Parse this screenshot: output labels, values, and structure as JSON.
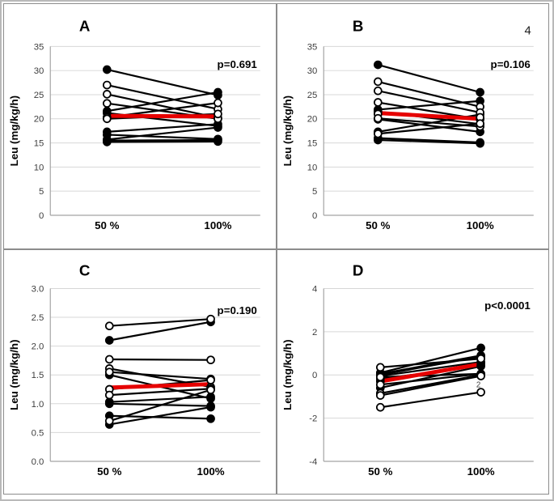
{
  "figure": {
    "page_number": "4",
    "y_axis_label": "Leu (mg/kg/h)",
    "x_categories": [
      "50 %",
      "100%"
    ],
    "colors": {
      "mean_line": "#e60000",
      "subject_line": "#000000",
      "grid_line": "#d7d7d7",
      "axis_line": "#a3a3a3",
      "panel_border": "#8c8c8c"
    }
  },
  "chart_data": [
    {
      "type": "line",
      "panel": "A",
      "title": "A",
      "p_label": "p=0.691",
      "ylabel": "Leu (mg/kg/h)",
      "categories": [
        "50 %",
        "100%"
      ],
      "ylim": [
        0,
        35
      ],
      "yticks": [
        0,
        5,
        10,
        15,
        20,
        25,
        30,
        35
      ],
      "ytick_labels": [
        "0",
        "5",
        "10",
        "15",
        "20",
        "25",
        "30",
        "35"
      ],
      "grid": true,
      "series": [
        {
          "name": "subject-1",
          "marker": "filled",
          "values": [
            30.2,
            24.9
          ]
        },
        {
          "name": "subject-2",
          "marker": "open",
          "values": [
            27.0,
            22.0
          ]
        },
        {
          "name": "subject-3",
          "marker": "open",
          "values": [
            25.1,
            20.2
          ]
        },
        {
          "name": "subject-4",
          "marker": "open",
          "values": [
            23.2,
            20.0
          ]
        },
        {
          "name": "subject-5",
          "marker": "filled",
          "values": [
            21.6,
            25.5
          ]
        },
        {
          "name": "subject-6",
          "marker": "filled",
          "values": [
            21.2,
            18.5
          ]
        },
        {
          "name": "subject-7",
          "marker": "open",
          "values": [
            20.3,
            23.3
          ]
        },
        {
          "name": "subject-8",
          "marker": "open",
          "values": [
            20.0,
            21.0
          ]
        },
        {
          "name": "subject-9",
          "marker": "filled",
          "values": [
            17.3,
            18.9
          ]
        },
        {
          "name": "subject-10",
          "marker": "filled",
          "values": [
            16.7,
            15.8
          ]
        },
        {
          "name": "subject-11",
          "marker": "filled",
          "values": [
            15.7,
            18.2
          ]
        },
        {
          "name": "subject-12",
          "marker": "filled",
          "values": [
            15.5,
            15.6
          ]
        },
        {
          "name": "subject-13",
          "marker": "filled",
          "values": [
            15.2,
            15.3
          ]
        }
      ],
      "mean": [
        20.6,
        20.5
      ]
    },
    {
      "type": "line",
      "panel": "B",
      "title": "B",
      "corner_note": "4",
      "p_label": "p=0.106",
      "ylabel": "Leu (mg/kg/h)",
      "categories": [
        "50 %",
        "100%"
      ],
      "ylim": [
        0,
        35
      ],
      "yticks": [
        0,
        5,
        10,
        15,
        20,
        25,
        30,
        35
      ],
      "ytick_labels": [
        "0",
        "5",
        "10",
        "15",
        "20",
        "25",
        "30",
        "35"
      ],
      "grid": true,
      "series": [
        {
          "name": "subject-1",
          "marker": "filled",
          "values": [
            31.2,
            25.5
          ]
        },
        {
          "name": "subject-2",
          "marker": "open",
          "values": [
            27.7,
            22.5
          ]
        },
        {
          "name": "subject-3",
          "marker": "open",
          "values": [
            25.8,
            21.3
          ]
        },
        {
          "name": "subject-4",
          "marker": "open",
          "values": [
            23.4,
            19.9
          ]
        },
        {
          "name": "subject-5",
          "marker": "filled",
          "values": [
            21.9,
            23.7
          ]
        },
        {
          "name": "subject-6",
          "marker": "filled",
          "values": [
            21.5,
            18.9
          ]
        },
        {
          "name": "subject-7",
          "marker": "open",
          "values": [
            21.0,
            20.3
          ]
        },
        {
          "name": "subject-8",
          "marker": "open",
          "values": [
            20.1,
            18.4
          ]
        },
        {
          "name": "subject-9",
          "marker": "filled",
          "values": [
            19.9,
            17.3
          ]
        },
        {
          "name": "subject-10",
          "marker": "filled",
          "values": [
            17.3,
            20.9
          ]
        },
        {
          "name": "subject-11",
          "marker": "open",
          "values": [
            16.9,
            19.0
          ]
        },
        {
          "name": "subject-12",
          "marker": "filled",
          "values": [
            16.0,
            15.1
          ]
        },
        {
          "name": "subject-13",
          "marker": "filled",
          "values": [
            15.6,
            14.9
          ]
        }
      ],
      "mean": [
        21.2,
        20.0
      ]
    },
    {
      "type": "line",
      "panel": "C",
      "title": "C",
      "p_label": "p=0.190",
      "ylabel": "Leu (mg/kg/h)",
      "categories": [
        "50 %",
        "100%"
      ],
      "ylim": [
        0,
        3
      ],
      "yticks": [
        0,
        0.5,
        1,
        1.5,
        2,
        2.5,
        3
      ],
      "ytick_labels": [
        "0.0",
        "0.5",
        "1.0",
        "1.5",
        "2.0",
        "2.5",
        "3.0"
      ],
      "grid": true,
      "series": [
        {
          "name": "subject-1",
          "marker": "open",
          "values": [
            2.35,
            2.47
          ]
        },
        {
          "name": "subject-2",
          "marker": "filled",
          "values": [
            2.1,
            2.42
          ]
        },
        {
          "name": "subject-3",
          "marker": "open",
          "values": [
            1.77,
            1.76
          ]
        },
        {
          "name": "subject-4",
          "marker": "open",
          "values": [
            1.61,
            1.29
          ]
        },
        {
          "name": "subject-5",
          "marker": "open",
          "values": [
            1.55,
            1.43
          ]
        },
        {
          "name": "subject-6",
          "marker": "filled",
          "values": [
            1.5,
            1.09
          ]
        },
        {
          "name": "subject-7",
          "marker": "open",
          "values": [
            1.25,
            1.41
          ]
        },
        {
          "name": "subject-8",
          "marker": "open",
          "values": [
            1.15,
            1.26
          ]
        },
        {
          "name": "subject-9",
          "marker": "filled",
          "values": [
            1.03,
            1.12
          ]
        },
        {
          "name": "subject-10",
          "marker": "filled",
          "values": [
            1.0,
            0.96
          ]
        },
        {
          "name": "subject-11",
          "marker": "filled",
          "values": [
            0.79,
            0.74
          ]
        },
        {
          "name": "subject-12",
          "marker": "open",
          "values": [
            0.7,
            1.24
          ]
        },
        {
          "name": "subject-13",
          "marker": "filled",
          "values": [
            0.64,
            0.94
          ]
        }
      ],
      "mean": [
        1.28,
        1.34
      ]
    },
    {
      "type": "line",
      "panel": "D",
      "title": "D",
      "p_label": "p<0.0001",
      "ylabel": "Leu (mg/kg/h)",
      "categories": [
        "50 %",
        "100%"
      ],
      "ylim": [
        -4,
        4
      ],
      "yticks": [
        -4,
        -2,
        0,
        2,
        4
      ],
      "ytick_labels": [
        "-4",
        "-2",
        "0",
        "2",
        "4"
      ],
      "grid": true,
      "annotation": {
        "text": "2",
        "category_index": 1,
        "value": -0.8
      },
      "series": [
        {
          "name": "subject-1",
          "marker": "open",
          "values": [
            0.35,
            0.75
          ]
        },
        {
          "name": "subject-2",
          "marker": "filled",
          "values": [
            0.1,
            1.25
          ]
        },
        {
          "name": "subject-3",
          "marker": "filled",
          "values": [
            0.05,
            0.9
          ]
        },
        {
          "name": "subject-4",
          "marker": "filled",
          "values": [
            0.0,
            0.85
          ]
        },
        {
          "name": "subject-5",
          "marker": "filled",
          "values": [
            -0.05,
            0.6
          ]
        },
        {
          "name": "subject-6",
          "marker": "open",
          "values": [
            -0.1,
            0.05
          ]
        },
        {
          "name": "subject-7",
          "marker": "filled",
          "values": [
            -0.2,
            0.45
          ]
        },
        {
          "name": "subject-8",
          "marker": "filled",
          "values": [
            -0.3,
            0.55
          ]
        },
        {
          "name": "subject-9",
          "marker": "open",
          "values": [
            -0.45,
            0.05
          ]
        },
        {
          "name": "subject-10",
          "marker": "filled",
          "values": [
            -0.6,
            0.4
          ]
        },
        {
          "name": "subject-11",
          "marker": "open",
          "values": [
            -0.85,
            0.0
          ]
        },
        {
          "name": "subject-12",
          "marker": "open",
          "values": [
            -0.95,
            -0.05
          ]
        },
        {
          "name": "subject-13",
          "marker": "open",
          "values": [
            -1.5,
            -0.8
          ]
        }
      ],
      "mean": [
        -0.3,
        0.5
      ]
    }
  ]
}
